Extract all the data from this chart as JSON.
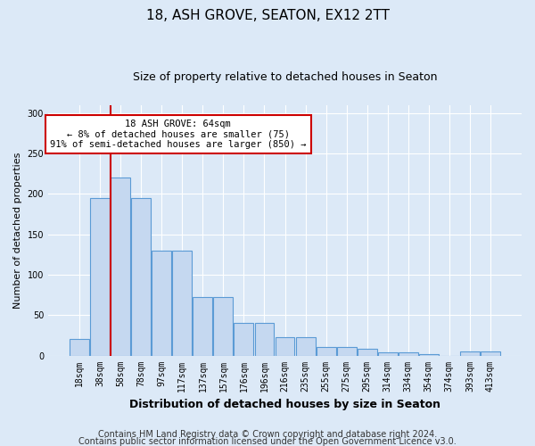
{
  "title1": "18, ASH GROVE, SEATON, EX12 2TT",
  "title2": "Size of property relative to detached houses in Seaton",
  "xlabel": "Distribution of detached houses by size in Seaton",
  "ylabel": "Number of detached properties",
  "categories": [
    "18sqm",
    "38sqm",
    "58sqm",
    "78sqm",
    "97sqm",
    "117sqm",
    "137sqm",
    "157sqm",
    "176sqm",
    "196sqm",
    "216sqm",
    "235sqm",
    "255sqm",
    "275sqm",
    "295sqm",
    "314sqm",
    "334sqm",
    "354sqm",
    "374sqm",
    "393sqm",
    "413sqm"
  ],
  "bar_heights": [
    20,
    195,
    220,
    195,
    130,
    130,
    72,
    72,
    40,
    40,
    23,
    23,
    10,
    10,
    8,
    4,
    4,
    2,
    0,
    5,
    5
  ],
  "bar_color": "#c5d8f0",
  "bar_edge_color": "#5b9bd5",
  "vline_color": "#cc0000",
  "annotation_text": "18 ASH GROVE: 64sqm\n← 8% of detached houses are smaller (75)\n91% of semi-detached houses are larger (850) →",
  "annotation_box_color": "#ffffff",
  "annotation_box_edge_color": "#cc0000",
  "ylim": [
    0,
    310
  ],
  "yticks": [
    0,
    50,
    100,
    150,
    200,
    250,
    300
  ],
  "footer1": "Contains HM Land Registry data © Crown copyright and database right 2024.",
  "footer2": "Contains public sector information licensed under the Open Government Licence v3.0.",
  "background_color": "#dce9f7",
  "plot_bg_color": "#dce9f7",
  "title1_fontsize": 11,
  "title2_fontsize": 9,
  "xlabel_fontsize": 9,
  "ylabel_fontsize": 8,
  "footer_fontsize": 7,
  "tick_fontsize": 7
}
